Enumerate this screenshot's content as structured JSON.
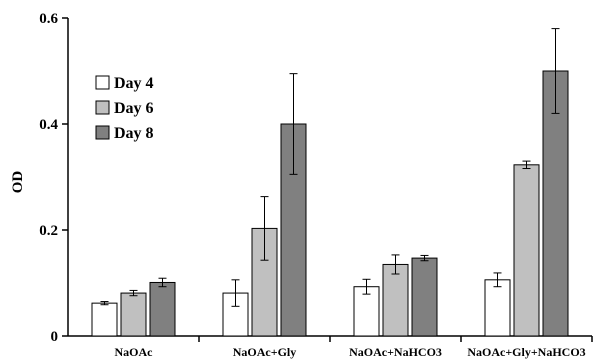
{
  "chart_data": {
    "type": "bar",
    "title": "",
    "xlabel": "",
    "ylabel": "OD",
    "ylim": [
      0,
      0.6
    ],
    "yticks": [
      0,
      0.2,
      0.4,
      0.6
    ],
    "ytick_labels": [
      "0",
      "0.2",
      "0.4",
      "0.6"
    ],
    "grid": false,
    "legend": "top-left",
    "categories": [
      "NaOAc",
      "NaOAc+Gly",
      "NaOAc+NaHCO3",
      "NaOAc+Gly+NaHCO3"
    ],
    "series": [
      {
        "name": "Day 4",
        "color": "#ffffff",
        "values": [
          0.062,
          0.081,
          0.093,
          0.106
        ],
        "errors": [
          0.003,
          0.025,
          0.014,
          0.013
        ]
      },
      {
        "name": "Day 6",
        "color": "#c0c0c0",
        "values": [
          0.081,
          0.203,
          0.135,
          0.323
        ],
        "errors": [
          0.005,
          0.06,
          0.018,
          0.007
        ]
      },
      {
        "name": "Day 8",
        "color": "#808080",
        "values": [
          0.101,
          0.4,
          0.147,
          0.5
        ],
        "errors": [
          0.008,
          0.095,
          0.005,
          0.08
        ]
      }
    ]
  }
}
